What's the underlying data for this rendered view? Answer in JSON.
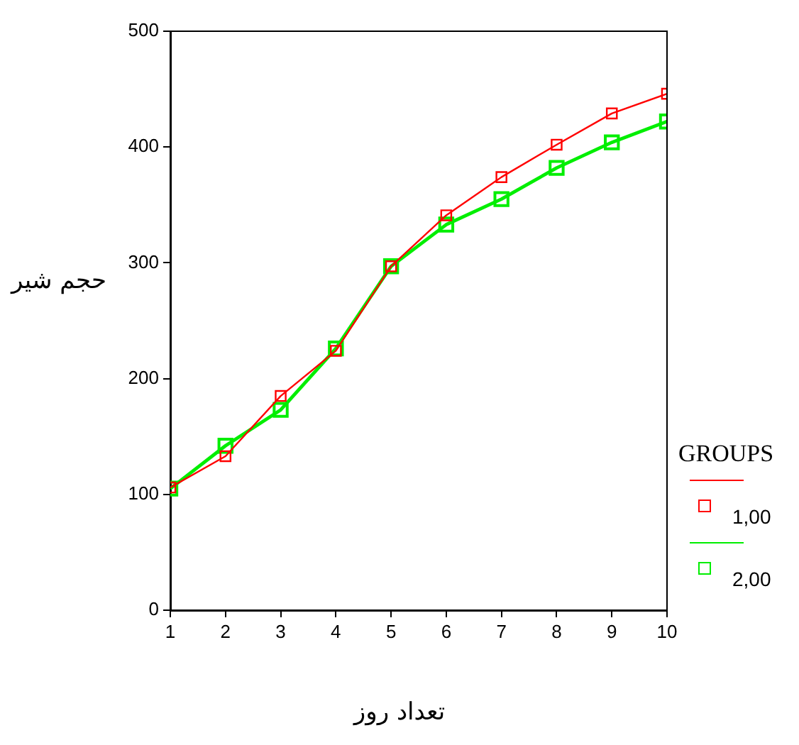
{
  "chart_data": {
    "type": "line",
    "xlabel": "تعداد روز",
    "ylabel": "حجم شیر",
    "legend_title": "GROUPS",
    "x": [
      1,
      2,
      3,
      4,
      5,
      6,
      7,
      8,
      9,
      10
    ],
    "series": [
      {
        "name": "1,00",
        "color": "#ff0000",
        "values": [
          106,
          133,
          185,
          224,
          297,
          341,
          374,
          402,
          429,
          446
        ]
      },
      {
        "name": "2,00",
        "color": "#00ee00",
        "values": [
          105,
          142,
          173,
          226,
          297,
          333,
          355,
          382,
          404,
          422
        ]
      }
    ],
    "xlim": [
      1,
      10
    ],
    "xticks": [
      1,
      2,
      3,
      4,
      5,
      6,
      7,
      8,
      9,
      10
    ],
    "ylim": [
      0,
      500
    ],
    "yticks": [
      0,
      100,
      200,
      300,
      400,
      500
    ],
    "grid": false,
    "legend": "bottom right",
    "marker": "square",
    "line_style": "solid"
  }
}
